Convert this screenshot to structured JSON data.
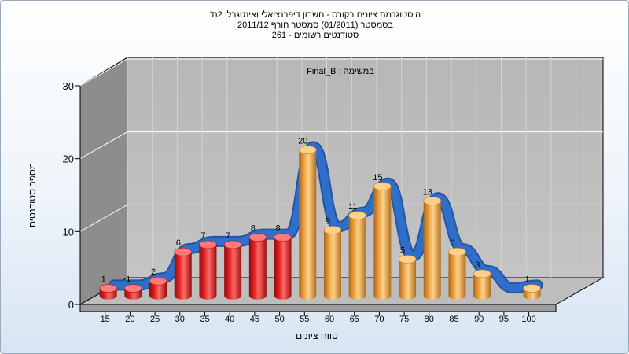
{
  "titles": {
    "line1": "היסטוגרמת ציונים בקורס - חשבון דיפרנציאלי ואינטגרלי 2ת'",
    "line2": "בסמסטר (01/2011) סמסטר חורף 2011/12",
    "line3": "סטודנטים רשומים - 261"
  },
  "chart_data": {
    "type": "bar",
    "subtitle": "במשימה : Final_B",
    "xlabel": "טווח ציונים",
    "ylabel": "מספר סטודנטים",
    "ylim": [
      0,
      30
    ],
    "yticks": [
      0,
      10,
      20,
      30
    ],
    "categories": [
      "15",
      "20",
      "25",
      "30",
      "35",
      "40",
      "45",
      "50",
      "55",
      "60",
      "65",
      "70",
      "75",
      "80",
      "85",
      "90",
      "95",
      "100"
    ],
    "values": [
      1,
      1,
      2,
      6,
      7,
      7,
      8,
      8,
      20,
      9,
      11,
      15,
      5,
      13,
      6,
      3,
      0,
      1
    ],
    "bar_colors": [
      "#e02020",
      "#e02020",
      "#e02020",
      "#e02020",
      "#e02020",
      "#e02020",
      "#e02020",
      "#e02020",
      "#f0a640",
      "#f0a640",
      "#f0a640",
      "#f0a640",
      "#f0a640",
      "#f0a640",
      "#f0a640",
      "#f0a640",
      "#f0a640",
      "#f0a640"
    ],
    "trend_color": "#2f6fcc",
    "grid": true
  }
}
